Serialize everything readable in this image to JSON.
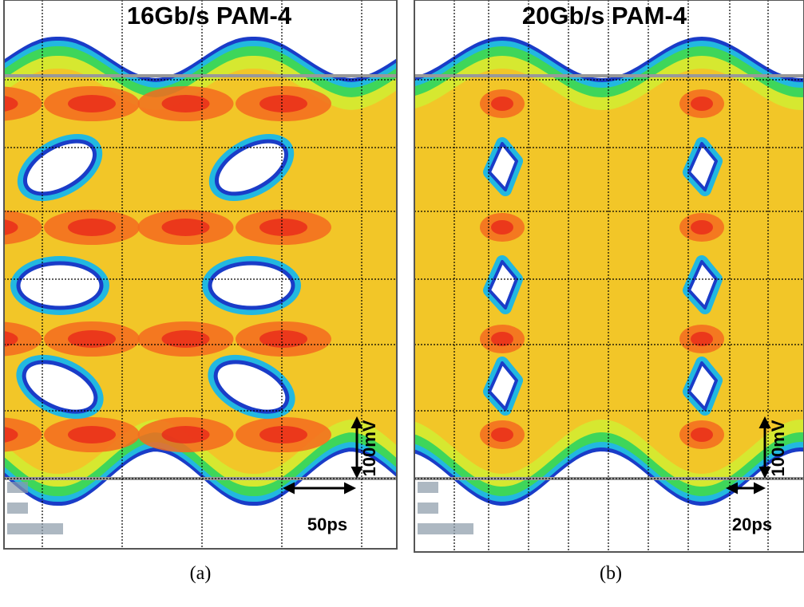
{
  "panels": [
    {
      "title": "16Gb/s PAM-4",
      "voltage_scale": "100mV",
      "time_scale": "50ps",
      "caption": "(a)"
    },
    {
      "title": "20Gb/s PAM-4",
      "voltage_scale": "100mV",
      "time_scale": "20ps",
      "caption": "(b)"
    }
  ]
}
